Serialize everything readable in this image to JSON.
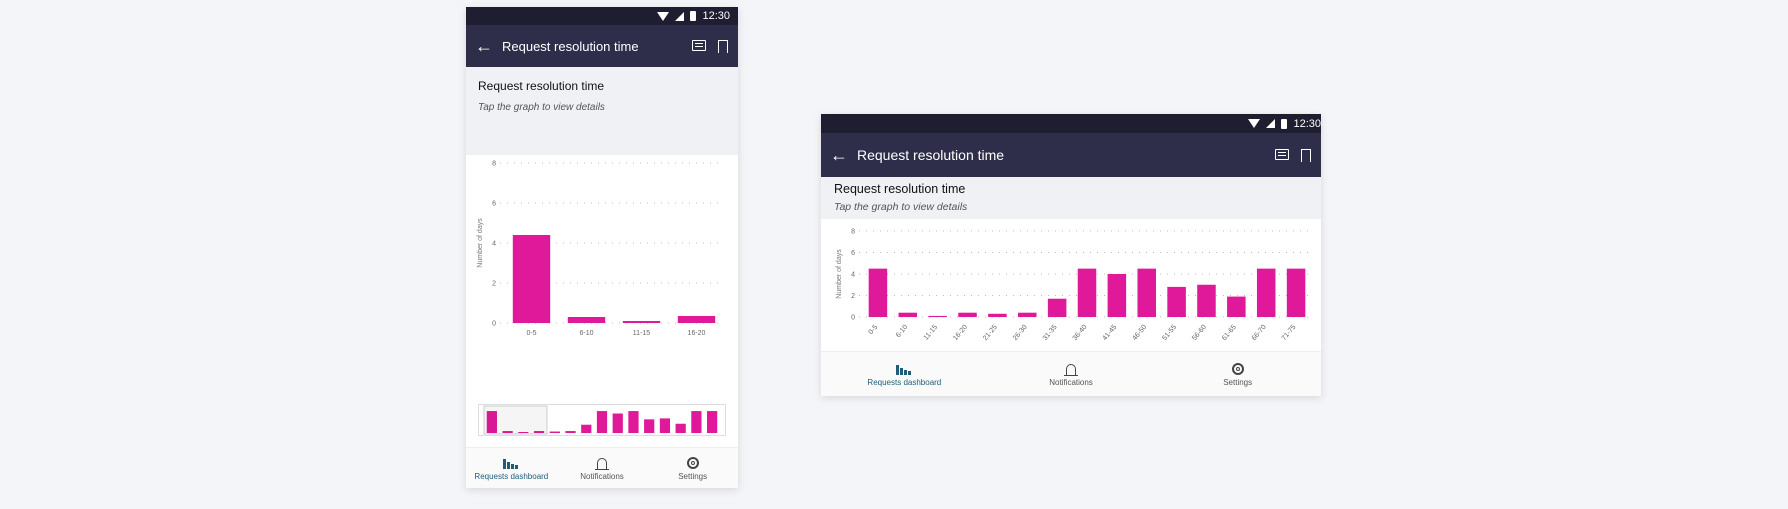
{
  "status": {
    "time": "12:30"
  },
  "appbar": {
    "title": "Request resolution time"
  },
  "header": {
    "title": "Request resolution time",
    "subtitle": "Tap the graph to view details"
  },
  "nav": {
    "items": [
      {
        "label": "Requests dashboard",
        "icon": "bar-chart-icon",
        "active": true
      },
      {
        "label": "Notifications",
        "icon": "bell-icon",
        "active": false
      },
      {
        "label": "Settings",
        "icon": "gear-icon",
        "active": false
      }
    ]
  },
  "colors": {
    "bar": "#e0189a",
    "appbar": "#2f2e4a",
    "statusbar": "#1f1d30",
    "active_nav": "#1f5d7a"
  },
  "chart_data": [
    {
      "type": "bar",
      "ylabel": "Number of days",
      "ylim": [
        0,
        8
      ],
      "yticks": [
        0,
        2,
        4,
        6,
        8
      ],
      "categories": [
        "0-5",
        "6-10",
        "11-15",
        "16-20"
      ],
      "values": [
        4.4,
        0.3,
        0.1,
        0.35
      ],
      "grid": true
    },
    {
      "type": "bar",
      "ylabel": "Number of days",
      "ylim": [
        0,
        8
      ],
      "yticks": [
        0,
        2,
        4,
        6,
        8
      ],
      "categories": [
        "0-5",
        "6-10",
        "11-15",
        "16-20",
        "21-25",
        "26-30",
        "31-35",
        "36-40",
        "41-45",
        "46-50",
        "51-55",
        "56-60",
        "61-65",
        "66-70",
        "71-75"
      ],
      "values": [
        4.5,
        0.4,
        0.1,
        0.4,
        0.3,
        0.4,
        1.7,
        4.5,
        4.0,
        4.5,
        2.8,
        3.0,
        1.9,
        4.5,
        4.5
      ],
      "grid": true
    }
  ]
}
